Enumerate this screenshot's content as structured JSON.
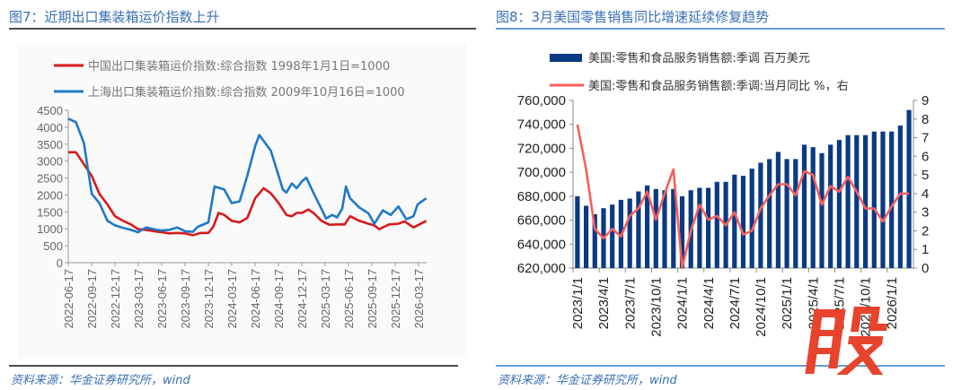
{
  "left": {
    "title": "图7：近期出口集装箱运价指数上升",
    "source": "资料来源：华金证券研究所，wind"
  },
  "right": {
    "title": "图8：3月美国零售销售同比增速延续修复趋势",
    "source": "资料来源：华金证券研究所，wind",
    "watermark": "股"
  },
  "chart_data": [
    {
      "type": "line",
      "title": "",
      "ylim": [
        0,
        4500
      ],
      "yticks": [
        "0",
        "500",
        "1000",
        "1500",
        "2000",
        "2500",
        "3000",
        "3500",
        "4000",
        "4500"
      ],
      "xticks": [
        "2022-06-17",
        "2022-09-17",
        "2022-12-17",
        "2023-03-17",
        "2023-06-17",
        "2023-09-17",
        "2023-12-17",
        "2024-03-17",
        "2024-06-17",
        "2024-09-17",
        "2024-12-17",
        "2025-03-17",
        "2025-06-17",
        "2025-09-17",
        "2025-12-17",
        "2026-03-17"
      ],
      "legend_placement": "top",
      "grid": false,
      "series": [
        {
          "name": "中国出口集装箱运价指数:综合指数 1998年1月1日=1000",
          "color": "#d7191c",
          "points": [
            [
              "2022-06-17",
              3260
            ],
            [
              "2022-07-17",
              3260
            ],
            [
              "2022-08-17",
              2910
            ],
            [
              "2022-09-17",
              2560
            ],
            [
              "2022-10-17",
              2030
            ],
            [
              "2022-11-17",
              1720
            ],
            [
              "2022-12-17",
              1370
            ],
            [
              "2023-01-17",
              1235
            ],
            [
              "2023-02-17",
              1130
            ],
            [
              "2023-03-17",
              990
            ],
            [
              "2023-04-17",
              970
            ],
            [
              "2023-05-17",
              930
            ],
            [
              "2023-06-17",
              900
            ],
            [
              "2023-07-17",
              865
            ],
            [
              "2023-08-17",
              880
            ],
            [
              "2023-09-17",
              865
            ],
            [
              "2023-10-17",
              810
            ],
            [
              "2023-11-17",
              880
            ],
            [
              "2023-12-17",
              880
            ],
            [
              "2024-01-05",
              1060
            ],
            [
              "2024-01-26",
              1470
            ],
            [
              "2024-02-17",
              1410
            ],
            [
              "2024-03-17",
              1235
            ],
            [
              "2024-04-17",
              1190
            ],
            [
              "2024-05-17",
              1320
            ],
            [
              "2024-06-17",
              1900
            ],
            [
              "2024-07-20",
              2200
            ],
            [
              "2024-08-17",
              2050
            ],
            [
              "2024-09-17",
              1760
            ],
            [
              "2024-10-17",
              1410
            ],
            [
              "2024-11-07",
              1370
            ],
            [
              "2024-11-26",
              1470
            ],
            [
              "2024-12-17",
              1470
            ],
            [
              "2025-01-11",
              1570
            ],
            [
              "2025-02-02",
              1455
            ],
            [
              "2025-03-03",
              1235
            ],
            [
              "2025-04-03",
              1120
            ],
            [
              "2025-05-03",
              1130
            ],
            [
              "2025-06-02",
              1130
            ],
            [
              "2025-06-23",
              1370
            ],
            [
              "2025-07-29",
              1235
            ],
            [
              "2025-09-03",
              1150
            ],
            [
              "2025-09-26",
              1100
            ],
            [
              "2025-10-15",
              990
            ],
            [
              "2025-11-23",
              1130
            ],
            [
              "2025-12-29",
              1150
            ],
            [
              "2026-01-22",
              1220
            ],
            [
              "2026-02-26",
              1040
            ],
            [
              "2026-04-17",
              1235
            ]
          ]
        },
        {
          "name": "上海出口集装箱运价指数:综合指数 2009年10月16日=1000",
          "color": "#1f78c8",
          "points": [
            [
              "2022-06-17",
              4250
            ],
            [
              "2022-07-17",
              4150
            ],
            [
              "2022-08-17",
              3530
            ],
            [
              "2022-09-17",
              2030
            ],
            [
              "2022-10-17",
              1760
            ],
            [
              "2022-11-17",
              1235
            ],
            [
              "2022-12-17",
              1100
            ],
            [
              "2023-01-17",
              1030
            ],
            [
              "2023-02-17",
              970
            ],
            [
              "2023-03-17",
              900
            ],
            [
              "2023-04-17",
              1040
            ],
            [
              "2023-05-17",
              990
            ],
            [
              "2023-06-17",
              950
            ],
            [
              "2023-07-17",
              970
            ],
            [
              "2023-08-17",
              1040
            ],
            [
              "2023-09-17",
              930
            ],
            [
              "2023-10-17",
              910
            ],
            [
              "2023-11-05",
              1060
            ],
            [
              "2023-12-17",
              1190
            ],
            [
              "2024-01-10",
              2250
            ],
            [
              "2024-02-17",
              2160
            ],
            [
              "2024-03-17",
              1760
            ],
            [
              "2024-04-17",
              1810
            ],
            [
              "2024-05-17",
              2560
            ],
            [
              "2024-06-17",
              3440
            ],
            [
              "2024-07-03",
              3770
            ],
            [
              "2024-08-17",
              3310
            ],
            [
              "2024-09-17",
              2560
            ],
            [
              "2024-10-03",
              2160
            ],
            [
              "2024-10-17",
              2070
            ],
            [
              "2024-11-07",
              2340
            ],
            [
              "2024-11-26",
              2200
            ],
            [
              "2024-12-17",
              2400
            ],
            [
              "2025-01-03",
              2510
            ],
            [
              "2025-02-02",
              2030
            ],
            [
              "2025-03-03",
              1590
            ],
            [
              "2025-03-21",
              1305
            ],
            [
              "2025-04-14",
              1410
            ],
            [
              "2025-05-03",
              1340
            ],
            [
              "2025-05-23",
              1590
            ],
            [
              "2025-06-07",
              2250
            ],
            [
              "2025-06-23",
              1900
            ],
            [
              "2025-07-29",
              1630
            ],
            [
              "2025-09-03",
              1455
            ],
            [
              "2025-09-26",
              1150
            ],
            [
              "2025-10-29",
              1545
            ],
            [
              "2025-11-29",
              1410
            ],
            [
              "2025-12-29",
              1660
            ],
            [
              "2026-01-29",
              1280
            ],
            [
              "2026-02-26",
              1370
            ],
            [
              "2026-03-14",
              1720
            ],
            [
              "2026-04-17",
              1900
            ]
          ]
        }
      ]
    },
    {
      "type": "bar+line",
      "title": "",
      "ylim": [
        620000,
        760000
      ],
      "y2lim": [
        0,
        9
      ],
      "yticks": [
        "620,000",
        "640,000",
        "660,000",
        "680,000",
        "700,000",
        "720,000",
        "740,000",
        "760,000"
      ],
      "y2ticks": [
        "0",
        "1",
        "2",
        "3",
        "4",
        "5",
        "6",
        "7",
        "8",
        "9"
      ],
      "xticks": [
        "2023/1/1",
        "2023/4/1",
        "2023/7/1",
        "2023/10/1",
        "2024/1/1",
        "2024/4/1",
        "2024/7/1",
        "2024/10/1",
        "2025/1/1",
        "2025/4/1",
        "2025/7/1",
        "2025/10/1",
        "2026/1/1"
      ],
      "categories": [
        "2023/1",
        "2023/2",
        "2023/3",
        "2023/4",
        "2023/5",
        "2023/6",
        "2023/7",
        "2023/8",
        "2023/9",
        "2023/10",
        "2023/11",
        "2023/12",
        "2024/1",
        "2024/2",
        "2024/3",
        "2024/4",
        "2024/5",
        "2024/6",
        "2024/7",
        "2024/8",
        "2024/9",
        "2024/10",
        "2024/11",
        "2024/12",
        "2025/1",
        "2025/2",
        "2025/3",
        "2025/4",
        "2025/5",
        "2025/6",
        "2025/7",
        "2025/8",
        "2025/9",
        "2025/10",
        "2025/11",
        "2025/12",
        "2026/1",
        "2026/2",
        "2026/3"
      ],
      "legend_placement": "top",
      "grid": false,
      "series": [
        {
          "name": "美国:零售和食品服务销售额:季调 百万美元",
          "type": "bar",
          "axis": "left",
          "color": "#0a3a82",
          "values": [
            680000,
            672000,
            665000,
            670000,
            673000,
            677000,
            678000,
            684000,
            689000,
            686000,
            685000,
            686000,
            680000,
            685000,
            687000,
            687000,
            692000,
            692000,
            698000,
            697000,
            703000,
            708000,
            711000,
            717000,
            711000,
            711000,
            723000,
            721000,
            716000,
            723000,
            727000,
            731000,
            731000,
            731000,
            734000,
            734000,
            734000,
            739000,
            752000
          ]
        },
        {
          "name": "美国:零售和食品服务销售额:季调:当月同比 %，右",
          "type": "line",
          "axis": "right",
          "color": "#f4605f",
          "values": [
            7.7,
            5.3,
            2.1,
            1.6,
            2.1,
            1.7,
            2.8,
            3.2,
            4.1,
            2.6,
            4.0,
            5.3,
            0.0,
            2.0,
            3.4,
            2.6,
            2.8,
            2.3,
            3.0,
            1.8,
            2.0,
            3.2,
            3.9,
            4.5,
            4.5,
            3.9,
            5.2,
            5.0,
            3.4,
            4.4,
            4.1,
            4.9,
            4.1,
            3.2,
            3.2,
            2.5,
            3.3,
            4.0,
            4.0
          ]
        }
      ]
    }
  ]
}
